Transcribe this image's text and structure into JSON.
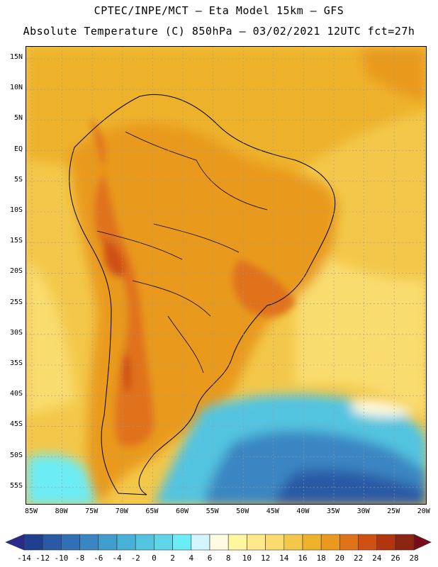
{
  "header": {
    "line1": "CPTEC/INPE/MCT —   Eta Model 15km — GFS",
    "line2": "Absolute Temperature (C) 850hPa — 03/02/2021 12UTC fct=27h"
  },
  "map": {
    "lat_labels": [
      "15N",
      "10N",
      "5N",
      "EQ",
      "5S",
      "10S",
      "15S",
      "20S",
      "25S",
      "30S",
      "35S",
      "40S",
      "45S",
      "50S",
      "55S"
    ],
    "lon_labels": [
      "85W",
      "80W",
      "75W",
      "70W",
      "65W",
      "60W",
      "55W",
      "50W",
      "45W",
      "40W",
      "35W",
      "30W",
      "25W",
      "20W"
    ]
  },
  "colorbar": {
    "labels": [
      "-14",
      "-12",
      "-10",
      "-8",
      "-6",
      "-4",
      "-2",
      "0",
      "2",
      "4",
      "6",
      "8",
      "10",
      "12",
      "14",
      "16",
      "18",
      "20",
      "22",
      "24",
      "26",
      "28"
    ],
    "colors": [
      "#1f3f8f",
      "#2a5aa5",
      "#3270b5",
      "#3a86c2",
      "#409dcc",
      "#47b2d6",
      "#52c4e0",
      "#5ed6e8",
      "#6cecf4",
      "#d2f5ff",
      "#fffbe3",
      "#fff6a0",
      "#ffe98a",
      "#f9dc6e",
      "#f3c84a",
      "#eeb22a",
      "#e99a1e",
      "#e0721a",
      "#cf4f14",
      "#b13610",
      "#8c2412"
    ],
    "left_arrow_color": "#2a2a8a",
    "right_arrow_color": "#7a0a1a"
  }
}
